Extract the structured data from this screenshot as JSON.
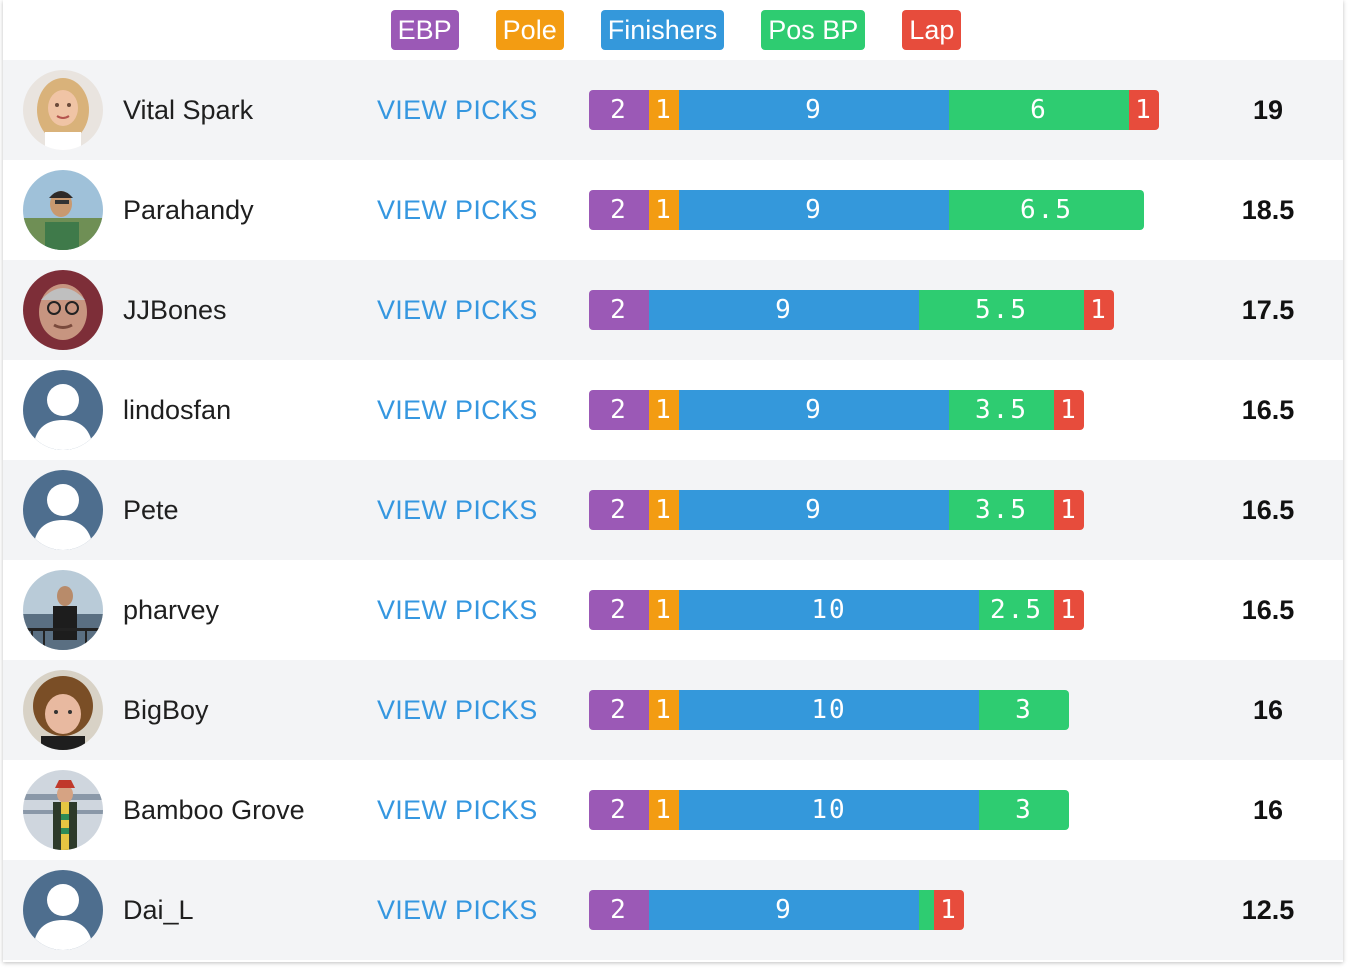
{
  "colors": {
    "EBP": "#9b59b6",
    "Pole": "#f39c12",
    "Finishers": "#3498db",
    "PosBP": "#2ecc71",
    "Lap": "#e74c3c"
  },
  "legend": [
    {
      "key": "EBP",
      "label": "EBP"
    },
    {
      "key": "Pole",
      "label": "Pole"
    },
    {
      "key": "Finishers",
      "label": "Finishers"
    },
    {
      "key": "PosBP",
      "label": "Pos BP"
    },
    {
      "key": "Lap",
      "label": "Lap"
    }
  ],
  "view_picks_label": "VIEW PICKS",
  "players": [
    {
      "name": "Vital Spark",
      "avatar": "photo-woman-blonde",
      "scores": {
        "EBP": 2,
        "Pole": 1,
        "Finishers": 9,
        "PosBP": 6,
        "Lap": 1
      },
      "labels": {
        "EBP": "2",
        "Pole": "1",
        "Finishers": "9",
        "PosBP": "6",
        "Lap": "1"
      },
      "total": "19"
    },
    {
      "name": "Parahandy",
      "avatar": "photo-man-outdoors",
      "scores": {
        "EBP": 2,
        "Pole": 1,
        "Finishers": 9,
        "PosBP": 6.5,
        "Lap": 0
      },
      "labels": {
        "EBP": "2",
        "Pole": "1",
        "Finishers": "9",
        "PosBP": "6.5",
        "Lap": ""
      },
      "total": "18.5"
    },
    {
      "name": "JJBones",
      "avatar": "photo-man-glasses",
      "scores": {
        "EBP": 2,
        "Pole": 0,
        "Finishers": 9,
        "PosBP": 5.5,
        "Lap": 1
      },
      "labels": {
        "EBP": "2",
        "Pole": "",
        "Finishers": "9",
        "PosBP": "5.5",
        "Lap": "1"
      },
      "total": "17.5"
    },
    {
      "name": "lindosfan",
      "avatar": "default-user",
      "scores": {
        "EBP": 2,
        "Pole": 1,
        "Finishers": 9,
        "PosBP": 3.5,
        "Lap": 1
      },
      "labels": {
        "EBP": "2",
        "Pole": "1",
        "Finishers": "9",
        "PosBP": "3.5",
        "Lap": "1"
      },
      "total": "16.5"
    },
    {
      "name": "Pete",
      "avatar": "default-user",
      "scores": {
        "EBP": 2,
        "Pole": 1,
        "Finishers": 9,
        "PosBP": 3.5,
        "Lap": 1
      },
      "labels": {
        "EBP": "2",
        "Pole": "1",
        "Finishers": "9",
        "PosBP": "3.5",
        "Lap": "1"
      },
      "total": "16.5"
    },
    {
      "name": "pharvey",
      "avatar": "photo-man-waterfront",
      "scores": {
        "EBP": 2,
        "Pole": 1,
        "Finishers": 10,
        "PosBP": 2.5,
        "Lap": 1
      },
      "labels": {
        "EBP": "2",
        "Pole": "1",
        "Finishers": "10",
        "PosBP": "2.5",
        "Lap": "1"
      },
      "total": "16.5"
    },
    {
      "name": "BigBoy",
      "avatar": "photo-man-curly-hair",
      "scores": {
        "EBP": 2,
        "Pole": 1,
        "Finishers": 10,
        "PosBP": 3,
        "Lap": 0
      },
      "labels": {
        "EBP": "2",
        "Pole": "1",
        "Finishers": "10",
        "PosBP": "3",
        "Lap": ""
      },
      "total": "16"
    },
    {
      "name": "Bamboo Grove",
      "avatar": "photo-fan-scarf",
      "scores": {
        "EBP": 2,
        "Pole": 1,
        "Finishers": 10,
        "PosBP": 3,
        "Lap": 0
      },
      "labels": {
        "EBP": "2",
        "Pole": "1",
        "Finishers": "10",
        "PosBP": "3",
        "Lap": ""
      },
      "total": "16"
    },
    {
      "name": "Dai_L",
      "avatar": "default-user",
      "scores": {
        "EBP": 2,
        "Pole": 0,
        "Finishers": 9,
        "PosBP": 0.5,
        "Lap": 1
      },
      "labels": {
        "EBP": "2",
        "Pole": "",
        "Finishers": "9",
        "PosBP": "",
        "Lap": "1"
      },
      "total": "12.5"
    }
  ]
}
